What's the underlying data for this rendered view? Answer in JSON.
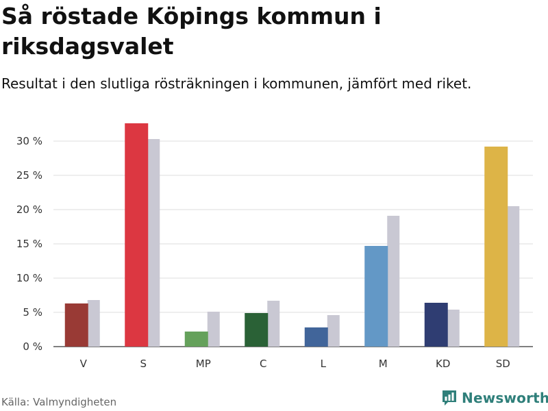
{
  "title": "Så röstade Köpings kommun i riksdagsvalet",
  "subtitle": "Resultat i den slutliga rösträkningen i kommunen, jämfört med riket.",
  "source": "Källa: Valmyndigheten",
  "brand": "Newsworthy",
  "chart_data": {
    "type": "bar",
    "categories": [
      "V",
      "S",
      "MP",
      "C",
      "L",
      "M",
      "KD",
      "SD"
    ],
    "series": [
      {
        "name": "Köpings kommun",
        "values": [
          6.3,
          32.6,
          2.2,
          4.9,
          2.8,
          14.7,
          6.4,
          29.2
        ]
      },
      {
        "name": "Riket",
        "values": [
          6.8,
          30.3,
          5.1,
          6.7,
          4.6,
          19.1,
          5.4,
          20.5
        ]
      }
    ],
    "colors": {
      "kommun": [
        "#993a35",
        "#dc3741",
        "#65a15b",
        "#2a6136",
        "#41659a",
        "#6398c6",
        "#2f3d72",
        "#ddb447"
      ],
      "riket": "#c9c8d3"
    },
    "y_ticks": [
      0,
      5,
      10,
      15,
      20,
      25,
      30
    ],
    "y_tick_labels": [
      "0 %",
      "5 %",
      "10 %",
      "15 %",
      "20 %",
      "25 %",
      "30 %"
    ],
    "ylim": [
      0,
      33
    ],
    "grid": true
  }
}
